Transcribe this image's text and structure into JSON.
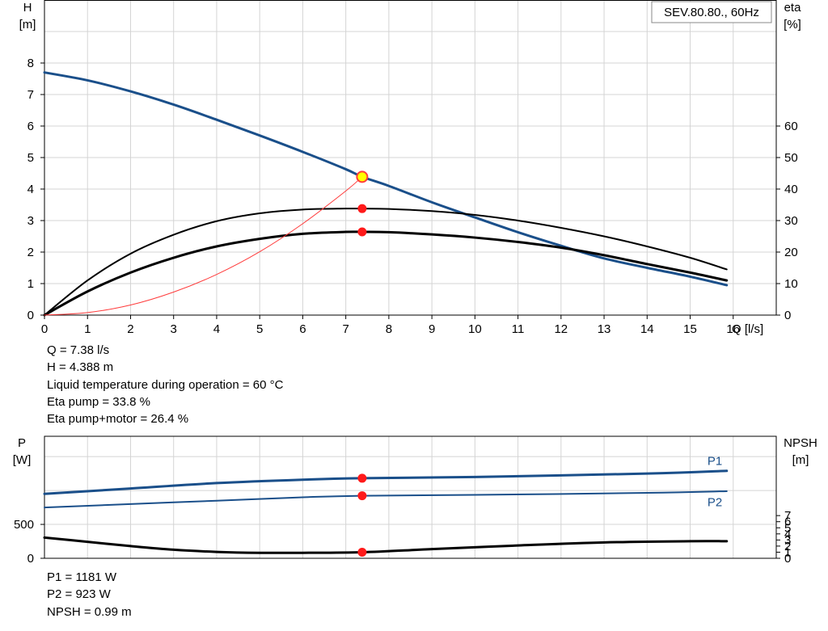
{
  "chart_data": [
    {
      "type": "line",
      "title": "SEV.80.80., 60Hz",
      "xlabel": "Q [l/s]",
      "ylabel_left": [
        "H",
        "[m]"
      ],
      "ylabel_right": [
        "eta",
        "[%]"
      ],
      "xlim": [
        0,
        17
      ],
      "ylim_left": [
        0,
        10
      ],
      "ylim_right": [
        0,
        100
      ],
      "x_ticks": [
        0,
        1,
        2,
        3,
        4,
        5,
        6,
        7,
        8,
        9,
        10,
        11,
        12,
        13,
        14,
        15,
        16
      ],
      "y_ticks_left": [
        0,
        1,
        2,
        3,
        4,
        5,
        6,
        7,
        8
      ],
      "y_ticks_right": [
        0,
        10,
        20,
        30,
        40,
        50,
        60
      ],
      "grid": true,
      "series": [
        {
          "axis": "left",
          "color": "#1a4f8a",
          "x": [
            0,
            1,
            2,
            3,
            4,
            5,
            6,
            7,
            7.38,
            8,
            9,
            10,
            11,
            12,
            13,
            14,
            15,
            15.85
          ],
          "y": [
            7.7,
            7.45,
            7.1,
            6.68,
            6.2,
            5.7,
            5.18,
            4.63,
            4.388,
            4.1,
            3.58,
            3.1,
            2.63,
            2.2,
            1.8,
            1.5,
            1.22,
            0.95
          ]
        },
        {
          "axis": "right",
          "color": "#000000",
          "x": [
            0,
            1,
            2,
            3,
            4,
            5,
            6,
            7,
            7.38,
            8,
            9,
            10,
            11,
            12,
            13,
            14,
            15,
            15.85
          ],
          "y": [
            0,
            11,
            19.5,
            25.5,
            29.8,
            32.3,
            33.5,
            33.8,
            33.8,
            33.7,
            33,
            31.8,
            30,
            27.7,
            25,
            21.8,
            18.2,
            14.5
          ]
        },
        {
          "axis": "right",
          "color": "#000000",
          "x": [
            0,
            1,
            2,
            3,
            4,
            5,
            6,
            7,
            7.38,
            8,
            9,
            10,
            11,
            12,
            13,
            14,
            15,
            15.85
          ],
          "y": [
            0,
            7.5,
            13.5,
            18.2,
            21.8,
            24.2,
            25.8,
            26.4,
            26.4,
            26.3,
            25.6,
            24.6,
            23.2,
            21.4,
            19,
            16.2,
            13.5,
            11
          ]
        },
        {
          "axis": "left",
          "color": "#ff3b3b",
          "x": [
            0,
            1,
            2,
            3,
            4,
            5,
            6,
            7,
            7.38
          ],
          "y": [
            0,
            0.08,
            0.32,
            0.73,
            1.29,
            2.01,
            2.9,
            3.94,
            4.388
          ]
        }
      ],
      "operating_point": {
        "Q": 7.38,
        "H": 4.388,
        "eta_pump": 33.8,
        "eta_pump_motor": 26.4
      }
    },
    {
      "type": "line",
      "ylabel_left": [
        "P",
        "[W]"
      ],
      "ylabel_right": [
        "NPSH",
        "[m]"
      ],
      "xlim": [
        0,
        17
      ],
      "ylim_left": [
        0,
        1800
      ],
      "ylim_right": [
        0,
        20
      ],
      "y_ticks_left": [
        0,
        500
      ],
      "y_ticks_right": [
        0,
        1,
        2,
        3,
        4,
        5,
        6,
        7
      ],
      "grid": true,
      "series": [
        {
          "name": "P1",
          "axis": "left",
          "color": "#1a4f8a",
          "width": 3,
          "x": [
            0,
            2,
            4,
            6,
            7.38,
            10,
            14,
            15.85
          ],
          "y": [
            950,
            1030,
            1110,
            1160,
            1181,
            1200,
            1250,
            1290
          ]
        },
        {
          "name": "P2",
          "axis": "left",
          "color": "#1a4f8a",
          "width": 2,
          "x": [
            0,
            2,
            4,
            6,
            7.38,
            10,
            14,
            15.85
          ],
          "y": [
            750,
            800,
            850,
            900,
            923,
            935,
            965,
            990
          ]
        },
        {
          "axis": "right",
          "color": "#000000",
          "width": 3,
          "x": [
            0,
            1,
            2,
            3,
            4,
            5,
            6,
            7.38,
            9,
            11,
            13,
            15,
            15.85
          ],
          "y": [
            3.4,
            2.7,
            2.0,
            1.4,
            1.05,
            0.9,
            0.9,
            0.99,
            1.5,
            2.1,
            2.6,
            2.8,
            2.8
          ]
        }
      ],
      "operating_point": {
        "Q": 7.38,
        "P1": 1181,
        "P2": 923,
        "NPSH": 0.99
      }
    }
  ],
  "readout_top": [
    "Q = 7.38 l/s",
    "H = 4.388 m",
    "Liquid temperature during operation = 60 °C",
    "Eta pump = 33.8 %",
    "Eta pump+motor = 26.4 %"
  ],
  "readout_bottom": [
    "P1 = 1181 W",
    "P2 = 923 W",
    "NPSH = 0.99 m"
  ]
}
